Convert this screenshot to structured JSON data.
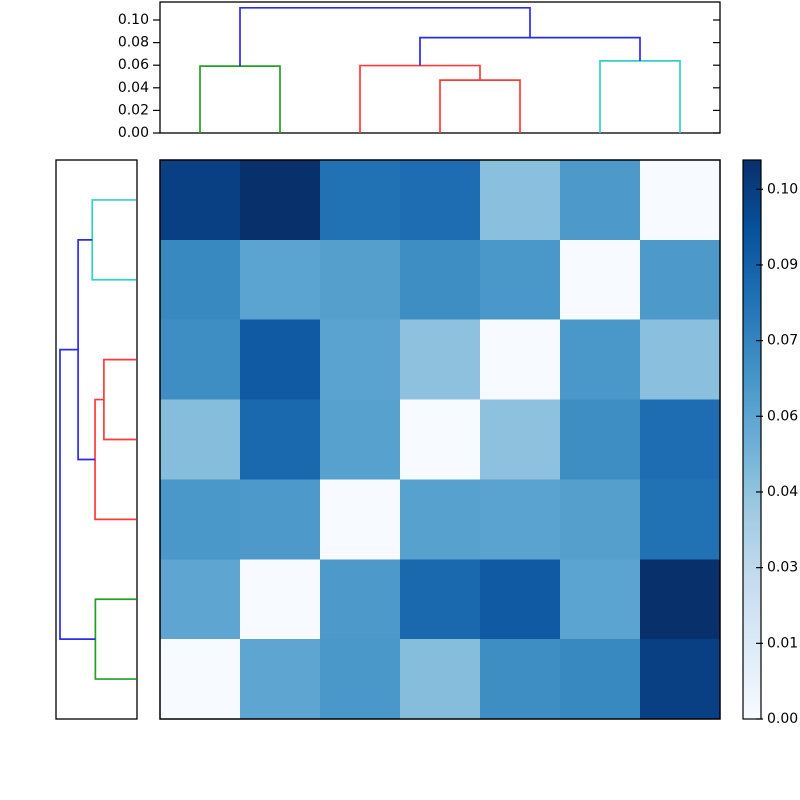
{
  "figure": {
    "background": "#ffffff",
    "description_labels": {
      "top_axis_tick_labels": [
        "0.00",
        "0.02",
        "0.04",
        "0.06",
        "0.08",
        "0.10"
      ],
      "colorbar_tick_labels": [
        "0.00",
        "0.01",
        "0.03",
        "0.04",
        "0.06",
        "0.07",
        "0.09",
        "0.10"
      ]
    }
  },
  "chart_data": {
    "type": "heatmap",
    "subtype": "clustermap-with-dendrograms",
    "colormap": "Blues",
    "vmin": 0.0,
    "vmax": 0.1108,
    "n_rows": 7,
    "n_cols": 7,
    "matrix": [
      [
        0.104,
        0.1108,
        0.083,
        0.085,
        0.047,
        0.0655,
        0.0
      ],
      [
        0.073,
        0.0608,
        0.063,
        0.071,
        0.0665,
        0.0,
        0.0655
      ],
      [
        0.071,
        0.093,
        0.061,
        0.046,
        0.0,
        0.0665,
        0.047
      ],
      [
        0.048,
        0.087,
        0.062,
        0.0,
        0.046,
        0.071,
        0.085
      ],
      [
        0.0667,
        0.0655,
        0.0,
        0.062,
        0.061,
        0.063,
        0.083
      ],
      [
        0.0598,
        0.0,
        0.0655,
        0.087,
        0.093,
        0.0608,
        0.1108
      ],
      [
        0.0,
        0.0598,
        0.0667,
        0.048,
        0.071,
        0.073,
        0.104
      ]
    ],
    "link_palette": {
      "blue": "#2b2bf0",
      "green": "#22a022",
      "red": "#fb3b3b",
      "cyan": "#35cfc7"
    },
    "top_dendrogram": {
      "orientation": "top",
      "axis_ticks": [
        {
          "label": "0.00",
          "value": 0.0
        },
        {
          "label": "0.02",
          "value": 0.02
        },
        {
          "label": "0.04",
          "value": 0.04
        },
        {
          "label": "0.06",
          "value": 0.06
        },
        {
          "label": "0.08",
          "value": 0.08
        },
        {
          "label": "0.10",
          "value": 0.1
        }
      ],
      "links": [
        {
          "color": "green",
          "left": {
            "pos": 1,
            "height": 0
          },
          "right": {
            "pos": 2,
            "height": 0
          },
          "height": 0.0592
        },
        {
          "color": "red",
          "left": {
            "pos": 4,
            "height": 0
          },
          "right": {
            "pos": 5,
            "height": 0
          },
          "height": 0.0468
        },
        {
          "color": "red",
          "left": {
            "pos": 3,
            "height": 0
          },
          "right": {
            "pos": 4.5,
            "height": 0.0468
          },
          "height": 0.0597
        },
        {
          "color": "cyan",
          "left": {
            "pos": 6,
            "height": 0
          },
          "right": {
            "pos": 7,
            "height": 0
          },
          "height": 0.0638
        },
        {
          "color": "blue",
          "left": {
            "pos": 3.75,
            "height": 0.0597
          },
          "right": {
            "pos": 6.5,
            "height": 0.0638
          },
          "height": 0.0844
        },
        {
          "color": "blue",
          "left": {
            "pos": 1.5,
            "height": 0.0592
          },
          "right": {
            "pos": 5.125,
            "height": 0.0844
          },
          "height": 0.1108
        }
      ]
    },
    "left_dendrogram": {
      "orientation": "left",
      "links": [
        {
          "color": "cyan",
          "left": {
            "pos": 1,
            "height": 0
          },
          "right": {
            "pos": 2,
            "height": 0
          },
          "height": 0.0638
        },
        {
          "color": "red",
          "left": {
            "pos": 3,
            "height": 0
          },
          "right": {
            "pos": 4,
            "height": 0
          },
          "height": 0.0468
        },
        {
          "color": "red",
          "left": {
            "pos": 3.5,
            "height": 0.0468
          },
          "right": {
            "pos": 5,
            "height": 0
          },
          "height": 0.0597
        },
        {
          "color": "green",
          "left": {
            "pos": 6,
            "height": 0
          },
          "right": {
            "pos": 7,
            "height": 0
          },
          "height": 0.0592
        },
        {
          "color": "blue",
          "left": {
            "pos": 1.5,
            "height": 0.0638
          },
          "right": {
            "pos": 4.25,
            "height": 0.0597
          },
          "height": 0.0844
        },
        {
          "color": "blue",
          "left": {
            "pos": 2.875,
            "height": 0.0844
          },
          "right": {
            "pos": 6.5,
            "height": 0.0592
          },
          "height": 0.1108
        }
      ]
    },
    "colorbar": {
      "position": "right",
      "ticks": [
        {
          "label": "0.00",
          "value": 0.0
        },
        {
          "label": "0.01",
          "value": 0.015
        },
        {
          "label": "0.03",
          "value": 0.03
        },
        {
          "label": "0.04",
          "value": 0.045
        },
        {
          "label": "0.06",
          "value": 0.06
        },
        {
          "label": "0.07",
          "value": 0.075
        },
        {
          "label": "0.09",
          "value": 0.09
        },
        {
          "label": "0.10",
          "value": 0.105
        }
      ]
    }
  }
}
